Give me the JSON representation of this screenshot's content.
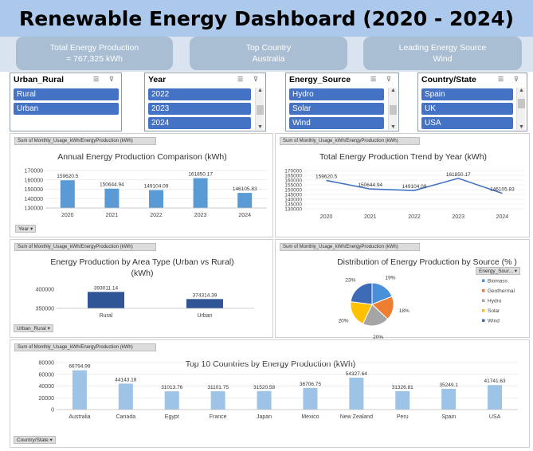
{
  "dashboard": {
    "title": "Renewable Energy Dashboard (2020 - 2024)"
  },
  "kpis": [
    {
      "line1": "Total Energy Production",
      "line2": "= 767,325 kWh"
    },
    {
      "line1": "Top Country",
      "line2": "Australia"
    },
    {
      "line1": "Leading Energy Source",
      "line2": "Wind"
    }
  ],
  "slicers": {
    "urban_rural": {
      "title": "Urban_Rural",
      "items": [
        "Rural",
        "Urban"
      ]
    },
    "year": {
      "title": "Year",
      "items": [
        "2022",
        "2023",
        "2024"
      ]
    },
    "energy_source": {
      "title": "Energy_Source",
      "items": [
        "Hydro",
        "Solar",
        "Wind"
      ]
    },
    "country": {
      "title": "Country/State",
      "items": [
        "Spain",
        "UK",
        "USA"
      ]
    }
  },
  "field_button": "Sum of Monthly_Usage_kWh/EnergyProduction (kWh)",
  "filters": {
    "year": "Year ▾",
    "urban_rural": "Urban_Rural ▾",
    "energy_source": "Energy_Sour... ▾",
    "country": "Country/State ▾"
  },
  "colors": {
    "bar_light": "#5b9bd5",
    "bar_dark": "#2f5597",
    "bar_pale": "#9dc3e6",
    "line": "#4472c4",
    "title_bg": "#acc8ea",
    "kpi_bg": "#a9bdd3",
    "slicer_item": "#4472c4"
  },
  "chart_data": [
    {
      "type": "bar",
      "title": "Annual Energy Production Comparison (kWh)",
      "categories": [
        "2020",
        "2021",
        "2022",
        "2023",
        "2024"
      ],
      "values": [
        159620.5,
        150644.94,
        149104.09,
        161850.17,
        146105.83
      ],
      "labels": [
        "159620.5",
        "150644.94",
        "149104.09",
        "161850.17",
        "146105.83"
      ],
      "ylim": [
        130000,
        170000
      ],
      "yticks": [
        "170000",
        "160000",
        "150000",
        "140000",
        "130000"
      ]
    },
    {
      "type": "line",
      "title": "Total Energy Production Trend by Year (kWh)",
      "categories": [
        "2020",
        "2021",
        "2022",
        "2023",
        "2024"
      ],
      "values": [
        159620.5,
        150644.94,
        149104.09,
        161850.17,
        146105.83
      ],
      "labels": [
        "159620.5",
        "150644.94",
        "149104.09",
        "161850.17",
        "146105.83"
      ],
      "ylim": [
        130000,
        170000
      ],
      "yticks": [
        "170000",
        "165000",
        "160000",
        "155000",
        "150000",
        "145000",
        "140000",
        "135000",
        "130000"
      ]
    },
    {
      "type": "bar",
      "title": "Energy Production by Area Type (Urban vs Rural)",
      "title2": "(kWh)",
      "categories": [
        "Rural",
        "Urban"
      ],
      "values": [
        393011.14,
        374314.39
      ],
      "labels": [
        "393011.14",
        "374314.39"
      ],
      "ylim": [
        350000,
        400000
      ],
      "yticks": [
        "400000",
        "350000"
      ]
    },
    {
      "type": "pie",
      "title": "Distribution of Energy Production by Source (% )",
      "categories": [
        "Biomass",
        "Geothermal",
        "Hydro",
        "Solar",
        "Wind"
      ],
      "values": [
        19,
        18,
        20,
        20,
        23
      ],
      "labels": [
        "19%",
        "18%",
        "20%",
        "20%",
        "23%"
      ],
      "colors": [
        "#4a90d9",
        "#ed7d31",
        "#a5a5a5",
        "#ffc000",
        "#3d6bb5"
      ],
      "legend": "right"
    },
    {
      "type": "bar",
      "title": "Top 10 Countries by Energy Production (kWh)",
      "categories": [
        "Australia",
        "Canada",
        "Egypt",
        "France",
        "Japan",
        "Mexico",
        "New Zealand",
        "Peru",
        "Spain",
        "USA"
      ],
      "values": [
        66794.99,
        44143.18,
        31013.76,
        31101.75,
        31520.58,
        36706.75,
        54327.64,
        31326.81,
        35249.1,
        41741.63
      ],
      "labels": [
        "66794.99",
        "44143.18",
        "31013.76",
        "31101.75",
        "31520.58",
        "36706.75",
        "54327.64",
        "31326.81",
        "35249.1",
        "41741.63"
      ],
      "ylim": [
        0,
        80000
      ],
      "yticks": [
        "80000",
        "60000",
        "40000",
        "20000",
        "0"
      ]
    }
  ]
}
